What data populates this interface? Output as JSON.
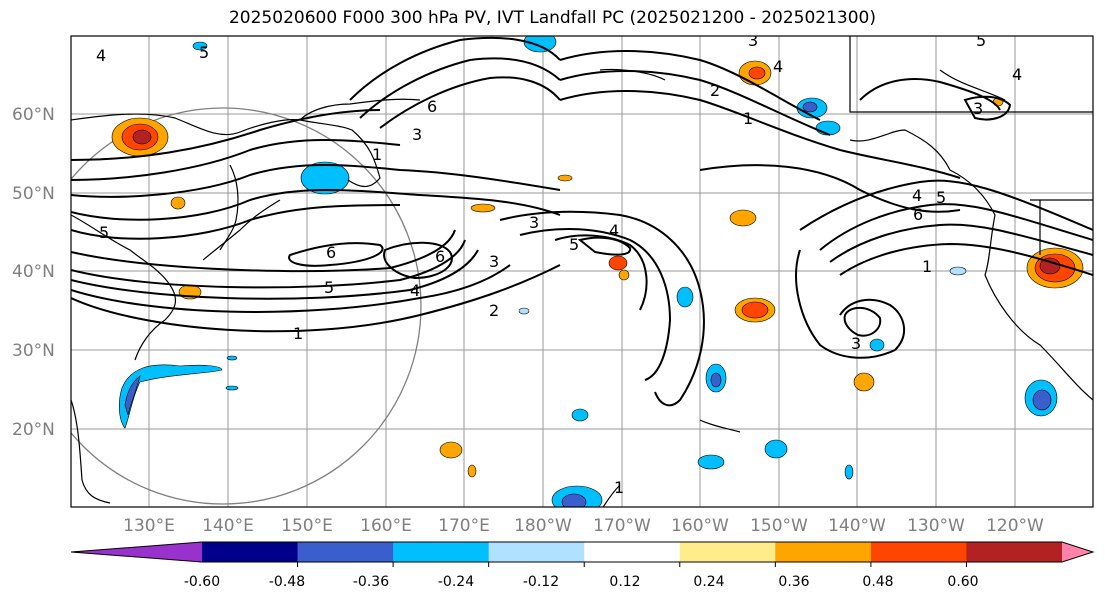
{
  "title": "2025020600 F000 300 hPa PV, IVT Landfall PC (2025021200 - 2025021300)",
  "lat_labels": [
    "60°N",
    "50°N",
    "40°N",
    "30°N",
    "20°N"
  ],
  "lon_labels": [
    "130°E",
    "140°E",
    "150°E",
    "160°E",
    "170°E",
    "180°W",
    "170°W",
    "160°W",
    "150°W",
    "140°W",
    "130°W",
    "120°W"
  ],
  "contour_labels": [
    "1",
    "2",
    "3",
    "4",
    "5",
    "6"
  ],
  "colorbar": {
    "ticks": [
      "-0.60",
      "-0.48",
      "-0.36",
      "-0.24",
      "-0.12",
      "0.12",
      "0.24",
      "0.36",
      "0.48",
      "0.60"
    ],
    "colors": [
      "#9932cc",
      "#00008b",
      "#3a5fcd",
      "#00bfff",
      "#b0e2ff",
      "#ffffff",
      "#ffec8b",
      "#ffa500",
      "#ff4500",
      "#b22222",
      "#ff82ab"
    ]
  }
}
